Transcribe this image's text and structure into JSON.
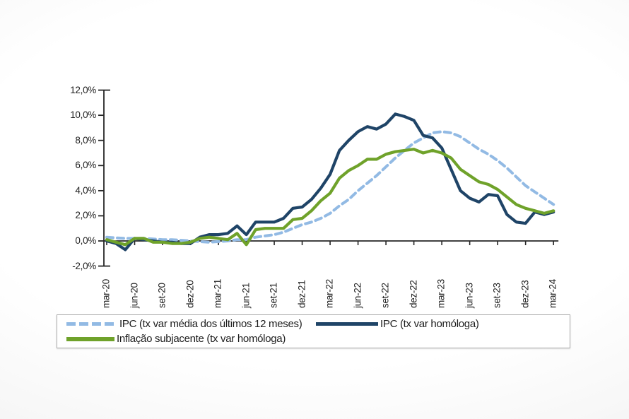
{
  "chart_data": {
    "type": "line",
    "title": "",
    "xlabel": "",
    "ylabel": "",
    "grid": false,
    "legend_position": "bottom",
    "y_axis": {
      "min": -2,
      "max": 12,
      "step": 2,
      "tick_values": [
        12,
        10,
        8,
        6,
        4,
        2,
        0,
        -2
      ],
      "tick_labels": [
        "12,0%",
        "10,0%",
        "8,0%",
        "6,0%",
        "4,0%",
        "2,0%",
        "0,0%",
        "-2,0%"
      ]
    },
    "x_axis": {
      "tick_labels": [
        "mar-20",
        "jun-20",
        "set-20",
        "dez-20",
        "mar-21",
        "jun-21",
        "set-21",
        "dez-21",
        "mar-22",
        "jun-22",
        "set-22",
        "dez-22",
        "mar-23",
        "jun-23",
        "set-23",
        "dez-23",
        "mar-24"
      ],
      "tick_every_n_points": 3
    },
    "categories": [
      "mar-20",
      "abr-20",
      "mai-20",
      "jun-20",
      "jul-20",
      "ago-20",
      "set-20",
      "out-20",
      "nov-20",
      "dez-20",
      "jan-21",
      "fev-21",
      "mar-21",
      "abr-21",
      "mai-21",
      "jun-21",
      "jul-21",
      "ago-21",
      "set-21",
      "out-21",
      "nov-21",
      "dez-21",
      "jan-22",
      "fev-22",
      "mar-22",
      "abr-22",
      "mai-22",
      "jun-22",
      "jul-22",
      "ago-22",
      "set-22",
      "out-22",
      "nov-22",
      "dez-22",
      "jan-23",
      "fev-23",
      "mar-23",
      "abr-23",
      "mai-23",
      "jun-23",
      "jul-23",
      "ago-23",
      "set-23",
      "out-23",
      "nov-23",
      "dez-23",
      "jan-24",
      "fev-24",
      "mar-24"
    ],
    "series": [
      {
        "name": "IPC (tx var média dos últimos 12 meses)",
        "color": "#92BAE4",
        "style": "dashed",
        "values": [
          0.3,
          0.25,
          0.2,
          0.2,
          0.2,
          0.15,
          0.1,
          0.1,
          0.05,
          0.0,
          -0.05,
          -0.1,
          -0.05,
          0.0,
          0.1,
          0.1,
          0.3,
          0.4,
          0.5,
          0.7,
          1.0,
          1.3,
          1.5,
          1.8,
          2.2,
          2.8,
          3.3,
          4.0,
          4.6,
          5.2,
          5.9,
          6.6,
          7.2,
          7.8,
          8.2,
          8.6,
          8.7,
          8.6,
          8.3,
          7.8,
          7.3,
          6.9,
          6.4,
          5.8,
          5.1,
          4.4,
          3.9,
          3.4,
          2.9
        ]
      },
      {
        "name": "IPC (tx var homóloga)",
        "color": "#1F4467",
        "style": "solid",
        "values": [
          0.0,
          -0.2,
          -0.7,
          0.2,
          0.1,
          0.0,
          -0.1,
          -0.1,
          -0.2,
          -0.2,
          0.3,
          0.5,
          0.5,
          0.6,
          1.2,
          0.5,
          1.5,
          1.5,
          1.5,
          1.8,
          2.6,
          2.7,
          3.3,
          4.2,
          5.3,
          7.2,
          8.0,
          8.7,
          9.1,
          8.9,
          9.3,
          10.1,
          9.9,
          9.6,
          8.4,
          8.2,
          7.4,
          5.7,
          4.0,
          3.4,
          3.1,
          3.7,
          3.6,
          2.1,
          1.5,
          1.4,
          2.3,
          2.1,
          2.3
        ]
      },
      {
        "name": "Inflação subjacente (tx var homóloga)",
        "color": "#6FA22A",
        "style": "solid",
        "values": [
          0.1,
          -0.1,
          -0.3,
          0.2,
          0.2,
          -0.1,
          -0.1,
          -0.2,
          -0.2,
          -0.1,
          0.2,
          0.3,
          0.2,
          0.1,
          0.6,
          -0.3,
          0.9,
          1.0,
          1.0,
          1.0,
          1.7,
          1.8,
          2.4,
          3.2,
          3.8,
          5.0,
          5.6,
          6.0,
          6.5,
          6.5,
          6.9,
          7.1,
          7.2,
          7.3,
          7.0,
          7.2,
          7.0,
          6.6,
          5.7,
          5.2,
          4.7,
          4.5,
          4.1,
          3.5,
          2.9,
          2.6,
          2.4,
          2.2,
          2.4
        ]
      }
    ],
    "axis_color": "#262626"
  }
}
